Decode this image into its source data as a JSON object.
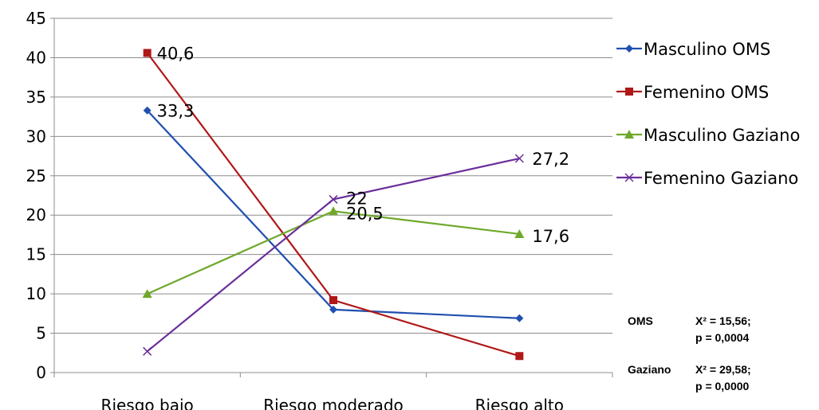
{
  "chart_data": {
    "type": "line",
    "categories": [
      "Riesgo bajo",
      "Riesgo moderado",
      "Riesgo alto"
    ],
    "ylim": [
      0,
      45
    ],
    "yticks": [
      0,
      5,
      10,
      15,
      20,
      25,
      30,
      35,
      40,
      45
    ],
    "grid": true,
    "legend_position": "right",
    "series": [
      {
        "name": "Masculino OMS",
        "values": [
          33.3,
          8.0,
          6.9
        ],
        "labels": [
          "33,3",
          "",
          ""
        ],
        "color": "#1F4FAF",
        "marker": "diamond"
      },
      {
        "name": "Femenino OMS",
        "values": [
          40.6,
          9.2,
          2.1
        ],
        "labels": [
          "40,6",
          "",
          ""
        ],
        "color": "#B01818",
        "marker": "square"
      },
      {
        "name": "Masculino Gaziano",
        "values": [
          10.0,
          20.5,
          17.6
        ],
        "labels": [
          "",
          "20,5",
          "17,6"
        ],
        "color": "#6FA82A",
        "marker": "triangle"
      },
      {
        "name": "Femenino Gaziano",
        "values": [
          2.7,
          22.0,
          27.2
        ],
        "labels": [
          "",
          "22",
          "27,2"
        ],
        "color": "#6A2E9A",
        "marker": "x"
      }
    ],
    "annotations": [
      {
        "label": "OMS",
        "line1": "X² = 15,56;",
        "line2": "p = 0,0004"
      },
      {
        "label": "Gaziano",
        "line1": "X² = 29,58;",
        "line2": "p = 0,0000"
      }
    ]
  }
}
